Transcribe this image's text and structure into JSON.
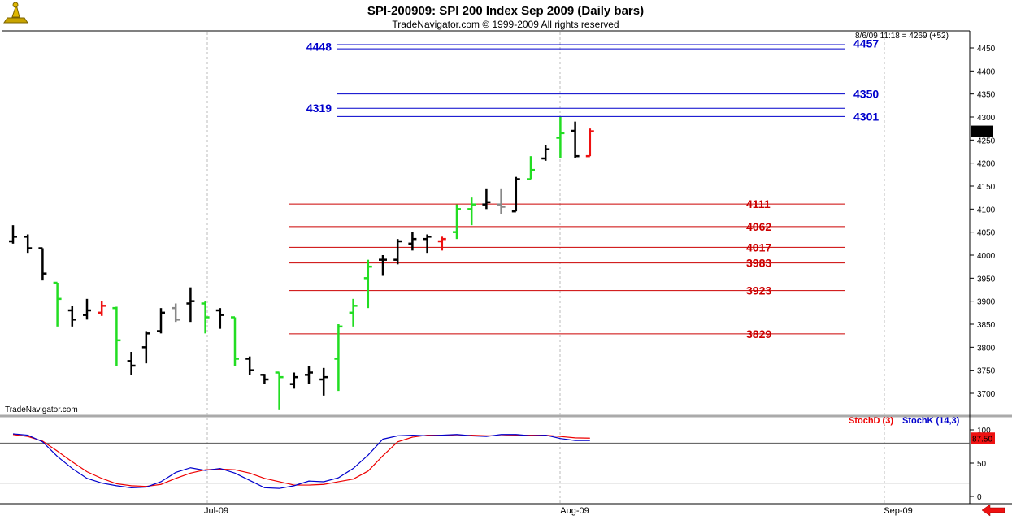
{
  "header": {
    "title": "SPI-200909:  SPI 200 Index Sep 2009  (Daily bars)",
    "subtitle": "TradeNavigator.com © 1999-2009 All rights reserved",
    "watermark": "TradeNavigator.com",
    "quote": "8/6/09 11:18 = 4269 (+52)"
  },
  "colors": {
    "up": "#22dd22",
    "down": "#000000",
    "flat": "#888888",
    "today": "#ee1111",
    "resistance": "#0000cc",
    "support": "#cc0000",
    "stochD": "#ee0000",
    "stochK": "#0000cc"
  },
  "chart_data": [
    {
      "type": "ohlc",
      "x_ticks": [
        "Jul-09",
        "Aug-09",
        "Sep-09"
      ],
      "y_ticks": [
        3700,
        3750,
        3800,
        3850,
        3900,
        3950,
        4000,
        4050,
        4100,
        4150,
        4200,
        4250,
        4300,
        4350,
        4400,
        4450
      ],
      "ylim": [
        3665,
        4470
      ],
      "last_price": "4269",
      "bars": [
        {
          "o": 4030,
          "h": 4065,
          "l": 4025,
          "c": 4040,
          "d": "down"
        },
        {
          "o": 4040,
          "h": 4045,
          "l": 4005,
          "c": 4015,
          "d": "down"
        },
        {
          "o": 4015,
          "h": 4015,
          "l": 3945,
          "c": 3960,
          "d": "down"
        },
        {
          "o": 3940,
          "h": 3940,
          "l": 3845,
          "c": 3905,
          "d": "up"
        },
        {
          "o": 3880,
          "h": 3890,
          "l": 3845,
          "c": 3860,
          "d": "down"
        },
        {
          "o": 3870,
          "h": 3905,
          "l": 3860,
          "c": 3880,
          "d": "down"
        },
        {
          "o": 3875,
          "h": 3900,
          "l": 3868,
          "c": 3890,
          "d": "today"
        },
        {
          "o": 3885,
          "h": 3888,
          "l": 3760,
          "c": 3815,
          "d": "up"
        },
        {
          "o": 3770,
          "h": 3790,
          "l": 3740,
          "c": 3760,
          "d": "down"
        },
        {
          "o": 3800,
          "h": 3835,
          "l": 3765,
          "c": 3830,
          "d": "down"
        },
        {
          "o": 3835,
          "h": 3885,
          "l": 3830,
          "c": 3875,
          "d": "down"
        },
        {
          "o": 3885,
          "h": 3895,
          "l": 3855,
          "c": 3860,
          "d": "flat"
        },
        {
          "o": 3895,
          "h": 3930,
          "l": 3855,
          "c": 3900,
          "d": "down"
        },
        {
          "o": 3895,
          "h": 3900,
          "l": 3830,
          "c": 3865,
          "d": "up"
        },
        {
          "o": 3880,
          "h": 3885,
          "l": 3840,
          "c": 3870,
          "d": "down"
        },
        {
          "o": 3865,
          "h": 3865,
          "l": 3760,
          "c": 3775,
          "d": "up"
        },
        {
          "o": 3775,
          "h": 3780,
          "l": 3740,
          "c": 3750,
          "d": "down"
        },
        {
          "o": 3740,
          "h": 3742,
          "l": 3720,
          "c": 3730,
          "d": "down"
        },
        {
          "o": 3745,
          "h": 3745,
          "l": 3665,
          "c": 3735,
          "d": "up"
        },
        {
          "o": 3720,
          "h": 3745,
          "l": 3710,
          "c": 3735,
          "d": "down"
        },
        {
          "o": 3740,
          "h": 3760,
          "l": 3720,
          "c": 3745,
          "d": "down"
        },
        {
          "o": 3730,
          "h": 3755,
          "l": 3695,
          "c": 3735,
          "d": "down"
        },
        {
          "o": 3775,
          "h": 3850,
          "l": 3705,
          "c": 3845,
          "d": "up"
        },
        {
          "o": 3875,
          "h": 3905,
          "l": 3845,
          "c": 3890,
          "d": "up"
        },
        {
          "o": 3950,
          "h": 3990,
          "l": 3885,
          "c": 3975,
          "d": "up"
        },
        {
          "o": 3990,
          "h": 4000,
          "l": 3955,
          "c": 3990,
          "d": "down"
        },
        {
          "o": 3990,
          "h": 4035,
          "l": 3980,
          "c": 4030,
          "d": "down"
        },
        {
          "o": 4025,
          "h": 4050,
          "l": 4010,
          "c": 4035,
          "d": "down"
        },
        {
          "o": 4035,
          "h": 4045,
          "l": 4005,
          "c": 4040,
          "d": "down"
        },
        {
          "o": 4030,
          "h": 4040,
          "l": 4010,
          "c": 4035,
          "d": "today"
        },
        {
          "o": 4050,
          "h": 4110,
          "l": 4035,
          "c": 4100,
          "d": "up"
        },
        {
          "o": 4100,
          "h": 4125,
          "l": 4065,
          "c": 4110,
          "d": "up"
        },
        {
          "o": 4110,
          "h": 4145,
          "l": 4100,
          "c": 4115,
          "d": "down"
        },
        {
          "o": 4110,
          "h": 4145,
          "l": 4090,
          "c": 4105,
          "d": "flat"
        },
        {
          "o": 4095,
          "h": 4170,
          "l": 4095,
          "c": 4165,
          "d": "down"
        },
        {
          "o": 4165,
          "h": 4215,
          "l": 4165,
          "c": 4185,
          "d": "up"
        },
        {
          "o": 4210,
          "h": 4240,
          "l": 4205,
          "c": 4230,
          "d": "down"
        },
        {
          "o": 4255,
          "h": 4300,
          "l": 4210,
          "c": 4265,
          "d": "up"
        },
        {
          "o": 4270,
          "h": 4290,
          "l": 4210,
          "c": 4215,
          "d": "down"
        },
        {
          "o": 4215,
          "h": 4275,
          "l": 4215,
          "c": 4269,
          "d": "today"
        }
      ],
      "resistance_levels": [
        {
          "left": "4448",
          "right": "4457",
          "values": [
            4448,
            4457
          ]
        },
        {
          "left": "",
          "right": "4350",
          "values": [
            4350
          ]
        },
        {
          "left": "4319",
          "right": "",
          "values": [
            4319
          ]
        },
        {
          "left": "",
          "right": "4301",
          "values": [
            4301
          ]
        }
      ],
      "support_levels": [
        {
          "label": "4111",
          "value": 4111
        },
        {
          "label": "4062",
          "value": 4062
        },
        {
          "label": "4017",
          "value": 4017
        },
        {
          "label": "3983",
          "value": 3983
        },
        {
          "label": "3923",
          "value": 3923
        },
        {
          "label": "3829",
          "value": 3829
        }
      ]
    },
    {
      "type": "line",
      "legend": [
        "StochD (3)",
        "StochK (14,3)"
      ],
      "y_ticks": [
        0,
        50,
        100
      ],
      "ylim": [
        0,
        100
      ],
      "reference_lines": [
        20,
        80
      ],
      "last_value": "87.50",
      "series": [
        {
          "name": "StochD (3)",
          "values": [
            93,
            90,
            83,
            68,
            52,
            37,
            27,
            19,
            16,
            15,
            18,
            27,
            35,
            40,
            41,
            40,
            35,
            27,
            22,
            17,
            17,
            18,
            22,
            26,
            38,
            61,
            82,
            89,
            92,
            92,
            91,
            92,
            91,
            91,
            92,
            92,
            92,
            90,
            88,
            87.5
          ]
        },
        {
          "name": "StochK (14,3)",
          "values": [
            94,
            92,
            82,
            60,
            42,
            27,
            20,
            16,
            13,
            14,
            22,
            36,
            43,
            39,
            42,
            35,
            24,
            13,
            12,
            16,
            23,
            22,
            28,
            42,
            62,
            86,
            91,
            92,
            91,
            92,
            93,
            91,
            90,
            93,
            93,
            91,
            92,
            87,
            84,
            84
          ]
        }
      ]
    }
  ]
}
